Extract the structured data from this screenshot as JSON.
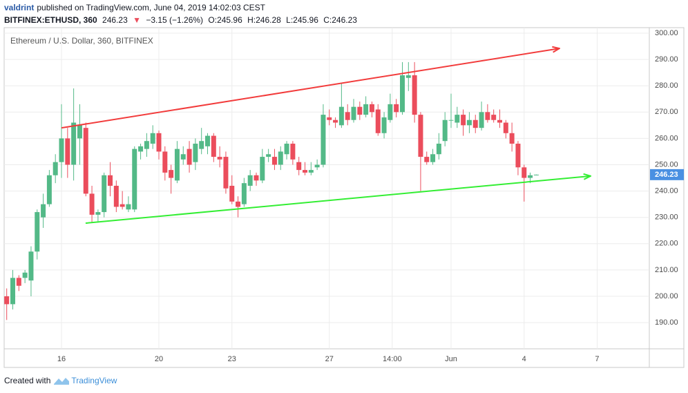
{
  "header": {
    "author": "valdrint",
    "published": "published on TradingView.com, June 04, 2019 14:02:03 CEST",
    "symbol": "BITFINEX:ETHUSD, 360",
    "price": "246.23",
    "arrow": "▼",
    "change": "−3.15 (−1.26%)",
    "open": "O:245.96",
    "high": "H:246.28",
    "low": "L:245.96",
    "close": "C:246.23"
  },
  "footer": {
    "created": "Created with",
    "brand": "TradingView"
  },
  "chart_data": {
    "type": "candlestick",
    "title": "Ethereum / U.S. Dollar, 360, BITFINEX",
    "up_color": "#53b987",
    "down_color": "#eb4d5c",
    "x": [
      13.75,
      14,
      14.25,
      14.5,
      14.75,
      15,
      15.25,
      15.5,
      15.75,
      16,
      16.25,
      16.5,
      16.75,
      17,
      17.25,
      17.5,
      17.75,
      18,
      18.25,
      18.5,
      18.75,
      19,
      19.25,
      19.5,
      19.75,
      20,
      20.25,
      20.5,
      20.75,
      21,
      21.25,
      21.5,
      21.75,
      22,
      22.25,
      22.5,
      22.75,
      23,
      23.25,
      23.5,
      23.75,
      24,
      24.25,
      24.5,
      24.75,
      25,
      25.25,
      25.5,
      25.75,
      26,
      26.25,
      26.5,
      26.75,
      27,
      27.25,
      27.5,
      27.75,
      28,
      28.25,
      28.5,
      28.75,
      29,
      29.25,
      29.5,
      29.75,
      30,
      30.25,
      30.5,
      30.75,
      31,
      31.25,
      31.5,
      31.75,
      32,
      32.25,
      32.5,
      32.75,
      33,
      33.25,
      33.5,
      33.75,
      34,
      34.25,
      34.5,
      34.75,
      35,
      35.25,
      35.5
    ],
    "open": [
      200,
      197,
      207,
      207,
      206,
      217,
      230,
      235,
      246,
      251,
      260,
      250,
      260,
      264,
      239,
      231,
      232,
      246,
      242,
      235,
      233,
      233,
      255,
      256,
      258,
      262,
      255,
      248,
      244,
      252,
      256,
      251,
      256,
      257,
      261,
      253,
      253,
      242,
      236,
      235,
      242,
      246,
      244,
      253,
      253,
      250,
      254,
      258,
      251,
      248,
      247,
      249,
      250,
      268,
      267,
      265,
      270,
      267,
      272,
      269,
      273,
      271,
      262,
      267,
      273,
      270,
      283,
      284,
      269,
      253,
      251,
      254,
      259,
      267,
      266,
      269,
      265,
      267,
      264,
      270,
      269,
      267,
      266,
      262,
      258,
      249,
      245,
      245.96
    ],
    "high": [
      203,
      210,
      208,
      210,
      219,
      233,
      239,
      248,
      254,
      273,
      264,
      279,
      273,
      266,
      242,
      233,
      247,
      251,
      244,
      240,
      238,
      257,
      258,
      262,
      265,
      263,
      257,
      250,
      259,
      257,
      259,
      260,
      264,
      262,
      262,
      257,
      255,
      246,
      238,
      245,
      248,
      247,
      256,
      256,
      256,
      257,
      259,
      259,
      253,
      251,
      251,
      252,
      273,
      271,
      268,
      281,
      273,
      275,
      274,
      276,
      274,
      273,
      270,
      277,
      275,
      289,
      289,
      289,
      270,
      255,
      256,
      262,
      270,
      277,
      272,
      271,
      270,
      269,
      274,
      273,
      271,
      271,
      267,
      266,
      259,
      250,
      247,
      246.28
    ],
    "low": [
      191,
      195,
      202,
      205,
      200,
      214,
      226,
      234,
      243,
      245,
      245,
      244,
      250,
      238,
      228,
      228,
      230,
      238,
      232,
      233,
      232,
      232,
      252,
      253,
      256,
      252,
      244,
      239,
      243,
      250,
      247,
      248,
      254,
      254,
      251,
      249,
      239,
      235,
      230,
      234,
      240,
      242,
      243,
      251,
      248,
      248,
      252,
      250,
      246,
      246,
      246,
      248,
      249,
      265,
      264,
      264,
      265,
      266,
      267,
      268,
      268,
      261,
      260,
      266,
      268,
      269,
      278,
      266,
      240,
      250,
      250,
      252,
      257,
      264,
      264,
      261,
      262,
      262,
      263,
      266,
      266,
      264,
      260,
      255,
      246,
      236,
      243,
      245.96
    ],
    "close": [
      197,
      207,
      204,
      209,
      217,
      232,
      235,
      246,
      251,
      260,
      250,
      266,
      265,
      239,
      231,
      232,
      246,
      242,
      234,
      234,
      235,
      256,
      257,
      259,
      262,
      255,
      247,
      245,
      256,
      254,
      250,
      258,
      259,
      261,
      253,
      252,
      241,
      236,
      234,
      243,
      246,
      244,
      253,
      254,
      250,
      255,
      258,
      252,
      248,
      247,
      248,
      250,
      269,
      267,
      266,
      272,
      267,
      272,
      269,
      273,
      270,
      262,
      268,
      273,
      270,
      284,
      284,
      269,
      253,
      251,
      254,
      258,
      267,
      267,
      269,
      265,
      267,
      264,
      270,
      267,
      267,
      266,
      262,
      258,
      249,
      245,
      246,
      246.23
    ],
    "last_price": 246.23,
    "trend_lines": [
      {
        "color": "#f23b3b",
        "x": [
          16,
          36.45
        ],
        "y": [
          264.0,
          294.2
        ]
      },
      {
        "color": "#33ee33",
        "x": [
          16.99,
          37.73
        ],
        "y": [
          227.8,
          245.7
        ]
      }
    ],
    "xlim": [
      13.645,
      40.142
    ],
    "ylim": [
      180.05,
      302.1
    ],
    "xticks": [
      16,
      20,
      23,
      27,
      {
        "value": 29.583,
        "label": "14:00"
      },
      {
        "value": 32,
        "label": "Jun"
      },
      {
        "value": 35,
        "label": "4"
      },
      {
        "value": 38,
        "label": "7"
      }
    ],
    "yticks": [
      {
        "value": 190,
        "label": "190.00"
      },
      {
        "value": 200,
        "label": "200.00"
      },
      {
        "value": 210,
        "label": "210.00"
      },
      {
        "value": 220,
        "label": "220.00"
      },
      {
        "value": 230,
        "label": "230.00"
      },
      {
        "value": 240,
        "label": "240.00"
      },
      {
        "value": 250,
        "label": "250.00"
      },
      {
        "value": 260,
        "label": "260.00"
      },
      {
        "value": 270,
        "label": "270.00"
      },
      {
        "value": 280,
        "label": "280.00"
      },
      {
        "value": 290,
        "label": "290.00"
      },
      {
        "value": 300,
        "label": "300.00"
      }
    ],
    "grid": true
  }
}
